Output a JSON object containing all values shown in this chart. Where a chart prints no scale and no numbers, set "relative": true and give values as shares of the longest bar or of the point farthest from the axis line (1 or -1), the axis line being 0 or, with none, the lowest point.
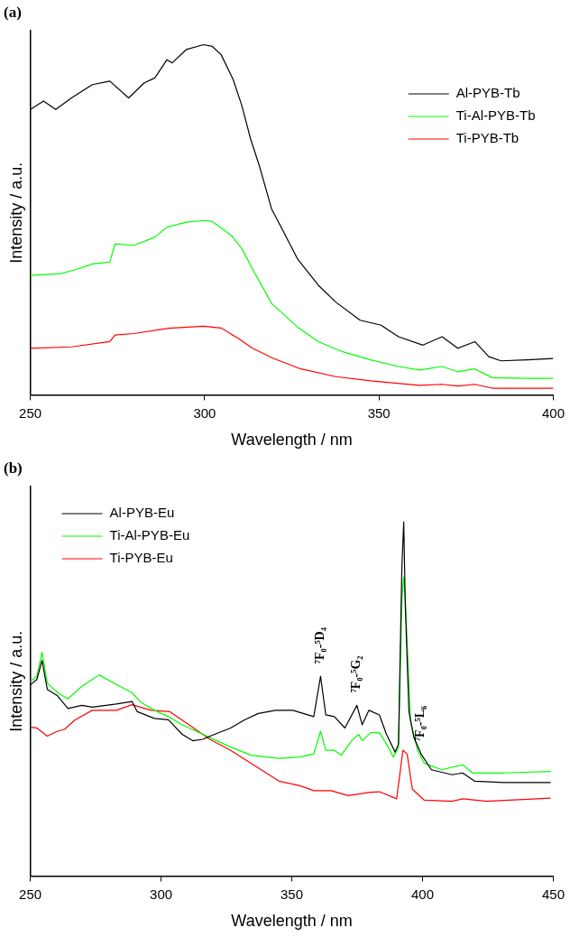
{
  "chart_data": [
    {
      "type": "line",
      "title": "(a)",
      "xlabel": "Wavelength / nm",
      "ylabel": "Intensity / a.u.",
      "relative": true,
      "xlim": [
        250,
        400
      ],
      "xticks": [
        250,
        300,
        350,
        400
      ],
      "legend": "top right",
      "grid": false,
      "marker": "none",
      "line_style": "solid",
      "series": [
        {
          "name": "Al-PYB-Tb",
          "color": "#000000",
          "x": [
            250,
            253.8,
            257.3,
            261.8,
            267.8,
            272.8,
            278.2,
            282.7,
            285.7,
            289.2,
            290.7,
            294.7,
            299.7,
            302.2,
            304.7,
            308.2,
            310.7,
            313.2,
            315.7,
            319.2,
            322.2,
            326.6,
            332.6,
            337.6,
            344.6,
            350.6,
            355.6,
            362.6,
            368.1,
            372.6,
            377.5,
            381.5,
            385,
            392.5,
            400
          ],
          "values": [
            0.815,
            0.839,
            0.815,
            0.848,
            0.886,
            0.896,
            0.848,
            0.891,
            0.905,
            0.957,
            0.948,
            0.986,
            1.0,
            0.995,
            0.972,
            0.9,
            0.825,
            0.73,
            0.654,
            0.531,
            0.474,
            0.389,
            0.313,
            0.265,
            0.213,
            0.199,
            0.166,
            0.142,
            0.166,
            0.133,
            0.152,
            0.109,
            0.097,
            0.1,
            0.104
          ]
        },
        {
          "name": "Ti-Al-PYB-Tb",
          "color": "#00ff00",
          "x": [
            250,
            258.8,
            263.8,
            267.8,
            272.8,
            274.3,
            279.7,
            285.7,
            289.2,
            294.7,
            299.7,
            302.2,
            307.7,
            310.7,
            313.7,
            319.2,
            326.6,
            332.6,
            339.6,
            347.6,
            355.6,
            361.6,
            368.1,
            372.6,
            377.5,
            382.5,
            392.5,
            400
          ],
          "values": [
            0.341,
            0.346,
            0.36,
            0.374,
            0.379,
            0.431,
            0.427,
            0.45,
            0.479,
            0.493,
            0.498,
            0.495,
            0.455,
            0.417,
            0.36,
            0.261,
            0.194,
            0.152,
            0.123,
            0.1,
            0.081,
            0.071,
            0.081,
            0.066,
            0.074,
            0.049,
            0.047,
            0.047
          ]
        },
        {
          "name": "Ti-PYB-Tb",
          "color": "#ff0000",
          "x": [
            250,
            261.8,
            272.8,
            274.3,
            279.7,
            289.7,
            299.7,
            304.7,
            309.7,
            313.7,
            319.7,
            327.6,
            337.6,
            347.6,
            361.6,
            368.1,
            372.6,
            377.5,
            382.5,
            400
          ],
          "values": [
            0.133,
            0.137,
            0.152,
            0.171,
            0.175,
            0.19,
            0.196,
            0.191,
            0.161,
            0.133,
            0.104,
            0.074,
            0.052,
            0.04,
            0.027,
            0.03,
            0.025,
            0.03,
            0.019,
            0.019
          ]
        }
      ]
    },
    {
      "type": "line",
      "title": "(b)",
      "xlabel": "Wavelength / nm",
      "ylabel": "Intensity / a.u.",
      "relative": true,
      "xlim": [
        250,
        450
      ],
      "xticks": [
        250,
        300,
        350,
        400,
        450
      ],
      "legend": "top left",
      "grid": false,
      "marker": "none",
      "line_style": "solid",
      "annotations": [
        {
          "text": "⁷F₀-⁵D₄",
          "x": 361,
          "y": 0.564
        },
        {
          "text": "⁷F₀-⁵G₂",
          "x": 374.9,
          "y": 0.482
        },
        {
          "text": "⁷F₀-⁵L₆",
          "x": 399.4,
          "y": 0.345
        }
      ],
      "series": [
        {
          "name": "Al-PYB-Eu",
          "color": "#000000",
          "x": [
            250,
            252.5,
            254.5,
            256.5,
            260.4,
            264.4,
            269.7,
            273.7,
            282.9,
            288.9,
            290.9,
            297.5,
            302.8,
            308.1,
            312.1,
            316,
            318.7,
            326.6,
            331.9,
            337.2,
            343.8,
            350.4,
            358.4,
            361,
            363,
            366.3,
            370.3,
            374.9,
            376.9,
            379.5,
            383.5,
            386.2,
            389.5,
            390.8,
            392.1,
            392.8,
            393.4,
            394.8,
            396.7,
            399.4,
            403.4,
            411.3,
            415.3,
            419.9,
            431.1,
            449
          ],
          "values": [
            0.54,
            0.555,
            0.609,
            0.527,
            0.509,
            0.473,
            0.482,
            0.477,
            0.486,
            0.493,
            0.464,
            0.445,
            0.441,
            0.4,
            0.382,
            0.386,
            0.395,
            0.418,
            0.441,
            0.459,
            0.468,
            0.468,
            0.45,
            0.564,
            0.455,
            0.45,
            0.418,
            0.482,
            0.427,
            0.468,
            0.455,
            0.4,
            0.35,
            0.373,
            0.873,
            1.0,
            0.764,
            0.464,
            0.391,
            0.345,
            0.3,
            0.286,
            0.291,
            0.268,
            0.264,
            0.264
          ]
        },
        {
          "name": "Ti-Al-PYB-Eu",
          "color": "#00ff00",
          "x": [
            250,
            252.5,
            254.5,
            256.5,
            260.4,
            264.4,
            269.7,
            276.3,
            282.9,
            288.9,
            292.2,
            297.5,
            302.8,
            308.1,
            313.4,
            318.7,
            326.6,
            334.5,
            345.1,
            353.1,
            358.4,
            361,
            363,
            366.3,
            368.9,
            372.9,
            375.6,
            376.9,
            380.2,
            383.5,
            386.2,
            388.8,
            390.8,
            392.1,
            392.8,
            393.4,
            395.4,
            398.1,
            400.7,
            407.3,
            415.3,
            419.2,
            431.1,
            449
          ],
          "values": [
            0.55,
            0.564,
            0.632,
            0.545,
            0.518,
            0.5,
            0.536,
            0.568,
            0.541,
            0.518,
            0.491,
            0.468,
            0.45,
            0.427,
            0.409,
            0.391,
            0.364,
            0.341,
            0.332,
            0.336,
            0.345,
            0.409,
            0.355,
            0.355,
            0.341,
            0.382,
            0.4,
            0.382,
            0.405,
            0.405,
            0.373,
            0.336,
            0.364,
            0.782,
            0.845,
            0.782,
            0.436,
            0.355,
            0.318,
            0.3,
            0.314,
            0.291,
            0.291,
            0.295
          ]
        },
        {
          "name": "Ti-PYB-Eu",
          "color": "#ff0000",
          "x": [
            250,
            252.5,
            256.5,
            260.4,
            263.1,
            267.1,
            273.7,
            282.9,
            288.9,
            296.2,
            303.4,
            310.7,
            318.7,
            326.6,
            334.5,
            345.1,
            353.1,
            358.4,
            365,
            371.6,
            379.5,
            383.5,
            390.1,
            392.5,
            394.1,
            396.1,
            400.7,
            411.3,
            415.3,
            424.5,
            449
          ],
          "values": [
            0.42,
            0.418,
            0.395,
            0.409,
            0.414,
            0.441,
            0.468,
            0.468,
            0.484,
            0.468,
            0.464,
            0.427,
            0.386,
            0.355,
            0.318,
            0.268,
            0.255,
            0.241,
            0.241,
            0.227,
            0.236,
            0.238,
            0.218,
            0.355,
            0.345,
            0.245,
            0.214,
            0.211,
            0.218,
            0.211,
            0.22
          ]
        }
      ]
    }
  ]
}
